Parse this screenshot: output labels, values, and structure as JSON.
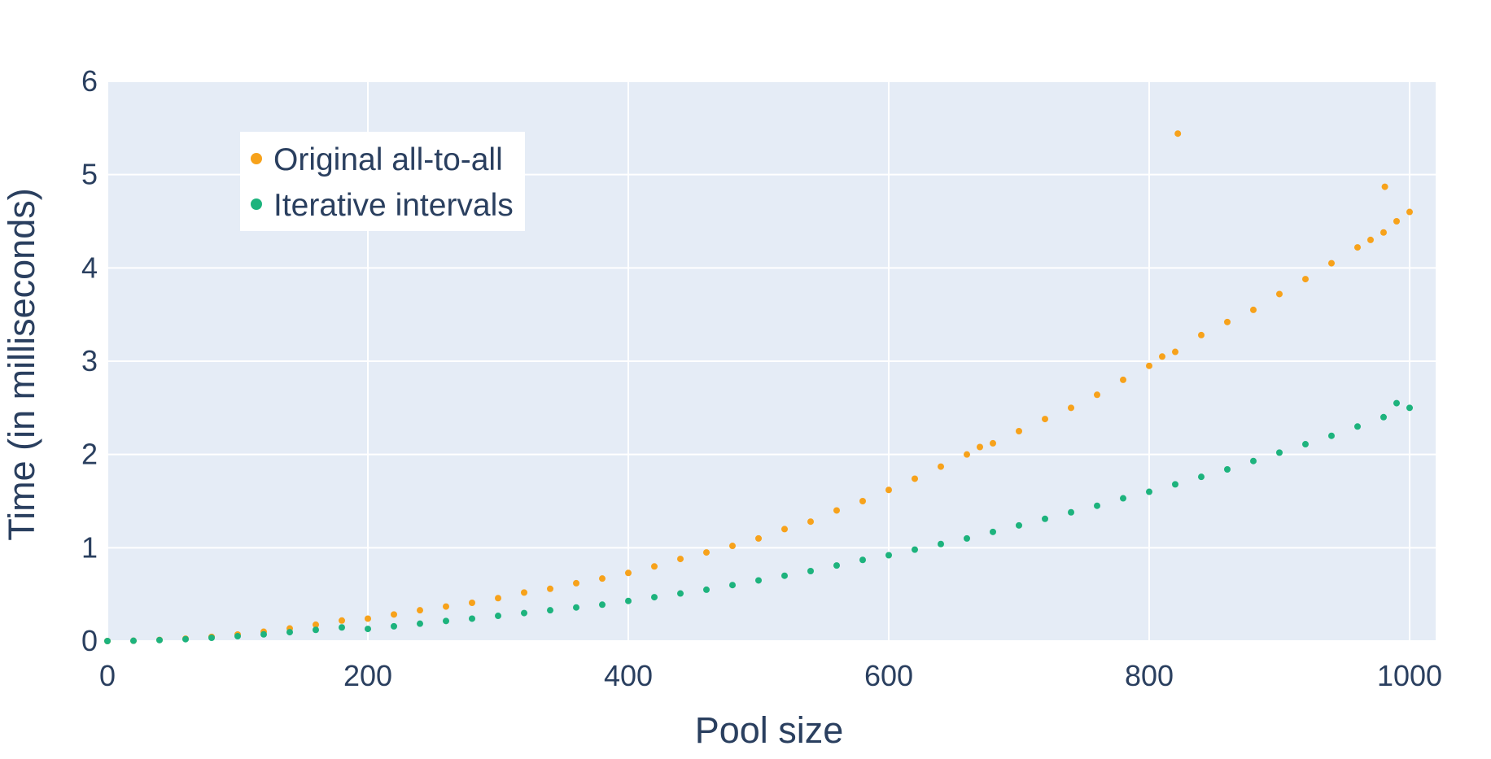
{
  "chart_data": {
    "type": "scatter",
    "xlabel": "Pool size",
    "ylabel": "Time (in milliseconds)",
    "xlim": [
      0,
      1020
    ],
    "ylim": [
      0,
      6
    ],
    "xticks": [
      0,
      200,
      400,
      600,
      800,
      1000
    ],
    "yticks": [
      0,
      1,
      2,
      3,
      4,
      5,
      6
    ],
    "grid": true,
    "legend_position": "top-left",
    "colors": {
      "plot_background": "#e5ecf6",
      "grid": "#ffffff",
      "text": "#2a3f5f"
    },
    "series": [
      {
        "name": "Original all-to-all",
        "color": "#f7a21b",
        "x": [
          0,
          20,
          40,
          60,
          80,
          100,
          120,
          140,
          160,
          180,
          200,
          220,
          240,
          260,
          280,
          300,
          320,
          340,
          360,
          380,
          400,
          420,
          440,
          460,
          480,
          500,
          520,
          540,
          560,
          580,
          600,
          620,
          640,
          660,
          670,
          680,
          700,
          720,
          740,
          760,
          780,
          800,
          810,
          820,
          822,
          840,
          860,
          880,
          900,
          920,
          940,
          960,
          970,
          980,
          981,
          990,
          1000
        ],
        "y": [
          0.0,
          0.003,
          0.012,
          0.025,
          0.045,
          0.07,
          0.1,
          0.135,
          0.175,
          0.22,
          0.24,
          0.285,
          0.33,
          0.37,
          0.41,
          0.46,
          0.52,
          0.56,
          0.62,
          0.67,
          0.73,
          0.8,
          0.88,
          0.95,
          1.02,
          1.1,
          1.2,
          1.28,
          1.4,
          1.5,
          1.62,
          1.74,
          1.87,
          2.0,
          2.08,
          2.12,
          2.25,
          2.38,
          2.5,
          2.64,
          2.8,
          2.95,
          3.05,
          3.1,
          5.44,
          3.28,
          3.42,
          3.55,
          3.72,
          3.88,
          4.05,
          4.22,
          4.3,
          4.38,
          4.87,
          4.5,
          4.6
        ]
      },
      {
        "name": "Iterative intervals",
        "color": "#1db37d",
        "x": [
          0,
          20,
          40,
          60,
          80,
          100,
          120,
          140,
          160,
          180,
          200,
          220,
          240,
          260,
          280,
          300,
          320,
          340,
          360,
          380,
          400,
          420,
          440,
          460,
          480,
          500,
          520,
          540,
          560,
          580,
          600,
          620,
          640,
          660,
          680,
          700,
          720,
          740,
          760,
          780,
          800,
          820,
          840,
          860,
          880,
          900,
          920,
          940,
          960,
          980,
          990,
          1000
        ],
        "y": [
          0.0,
          0.003,
          0.01,
          0.02,
          0.035,
          0.052,
          0.072,
          0.095,
          0.12,
          0.146,
          0.13,
          0.158,
          0.186,
          0.215,
          0.24,
          0.27,
          0.3,
          0.33,
          0.36,
          0.39,
          0.43,
          0.47,
          0.51,
          0.55,
          0.6,
          0.65,
          0.7,
          0.75,
          0.81,
          0.87,
          0.92,
          0.98,
          1.04,
          1.1,
          1.17,
          1.24,
          1.31,
          1.38,
          1.45,
          1.53,
          1.6,
          1.68,
          1.76,
          1.84,
          1.93,
          2.02,
          2.11,
          2.2,
          2.3,
          2.4,
          2.55,
          2.5
        ]
      }
    ]
  }
}
